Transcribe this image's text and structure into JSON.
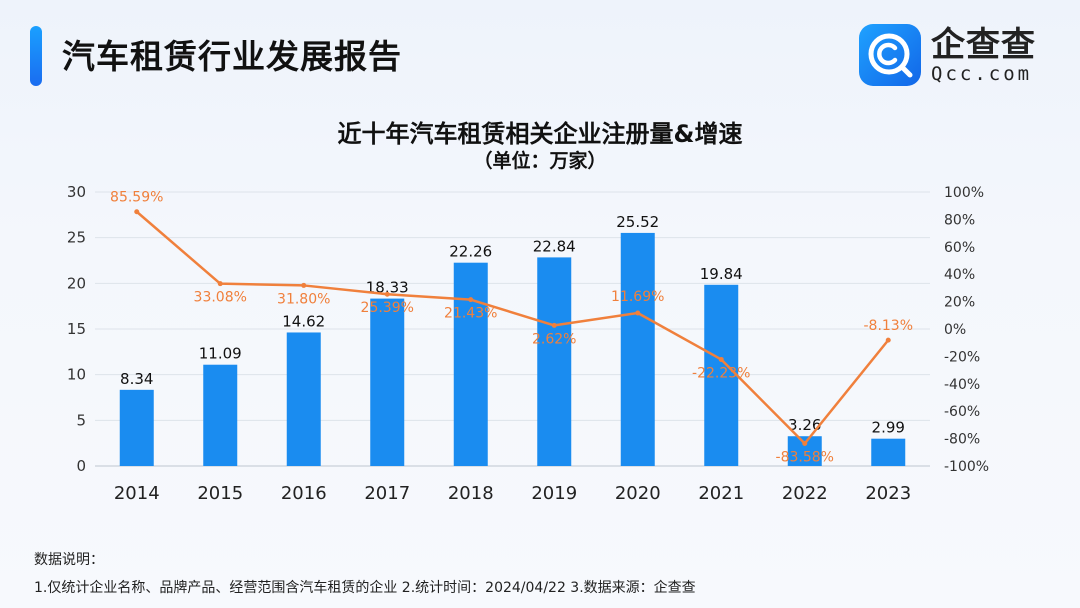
{
  "header": {
    "title": "汽车租赁行业发展报告"
  },
  "logo": {
    "name_cn": "企查查",
    "name_en": "Qcc.com",
    "icon": "magnifier-c-icon"
  },
  "colors": {
    "bar": "#1a8cf0",
    "line": "#f0803c",
    "accent": "#1a7cf5"
  },
  "chart_data": {
    "type": "bar",
    "title": "近十年汽车租赁相关企业注册量&增速",
    "subtitle": "（单位：万家）",
    "categories": [
      "2014",
      "2015",
      "2016",
      "2017",
      "2018",
      "2019",
      "2020",
      "2021",
      "2022",
      "2023"
    ],
    "series": [
      {
        "type": "bar",
        "axis": "left",
        "values": [
          8.34,
          11.09,
          14.62,
          18.33,
          22.26,
          22.84,
          25.52,
          19.84,
          3.26,
          2.99
        ],
        "labels": [
          "8.34",
          "11.09",
          "14.62",
          "18.33",
          "22.26",
          "22.84",
          "25.52",
          "19.84",
          "3.26",
          "2.99"
        ]
      },
      {
        "type": "line",
        "axis": "right",
        "values": [
          85.59,
          33.08,
          31.8,
          25.39,
          21.43,
          2.62,
          11.69,
          -22.23,
          -83.58,
          -8.13
        ],
        "labels": [
          "85.59%",
          "33.08%",
          "31.80%",
          "25.39%",
          "21.43%",
          "2.62%",
          "11.69%",
          "-22.23%",
          "-83.58%",
          "-8.13%"
        ]
      }
    ],
    "ylim": [
      0,
      30
    ],
    "y_ticks": [
      "0",
      "5",
      "10",
      "15",
      "20",
      "25",
      "30"
    ],
    "y2lim": [
      -100,
      100
    ],
    "y2_ticks": [
      "-100%",
      "-80%",
      "-60%",
      "-40%",
      "-20%",
      "0%",
      "20%",
      "40%",
      "60%",
      "80%",
      "100%"
    ],
    "grid": true
  },
  "notes": {
    "heading": "数据说明：",
    "line": "1.仅统计企业名称、品牌产品、经营范围含汽车租赁的企业   2.统计时间：2024/04/22   3.数据来源：企查查"
  }
}
